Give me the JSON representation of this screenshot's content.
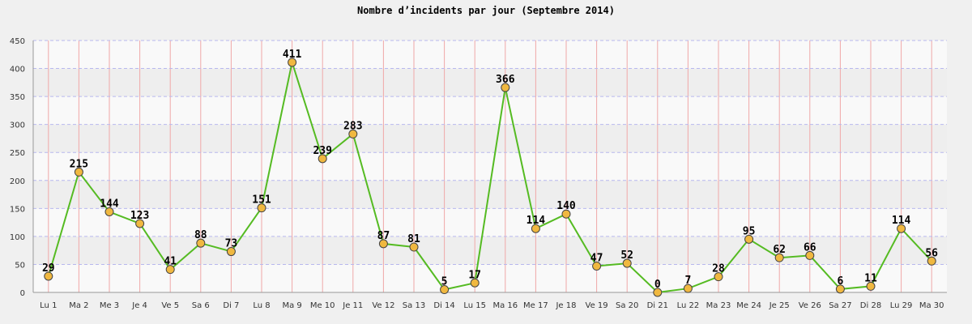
{
  "chart_data": {
    "type": "line",
    "title": "Nombre d’incidents par jour (Septembre 2014)",
    "xlabel": "",
    "ylabel": "",
    "ylim": [
      0,
      450
    ],
    "yticks": [
      0,
      50,
      100,
      150,
      200,
      250,
      300,
      350,
      400,
      450
    ],
    "grid": true,
    "categories": [
      "Lu 1",
      "Ma 2",
      "Me 3",
      "Je 4",
      "Ve 5",
      "Sa 6",
      "Di 7",
      "Lu 8",
      "Ma 9",
      "Me 10",
      "Je 11",
      "Ve 12",
      "Sa 13",
      "Di 14",
      "Lu 15",
      "Ma 16",
      "Me 17",
      "Je 18",
      "Ve 19",
      "Sa 20",
      "Di 21",
      "Lu 22",
      "Ma 23",
      "Me 24",
      "Je 25",
      "Ve 26",
      "Sa 27",
      "Di 28",
      "Lu 29",
      "Ma 30"
    ],
    "series": [
      {
        "values": [
          29,
          215,
          144,
          123,
          41,
          88,
          73,
          151,
          411,
          239,
          283,
          87,
          81,
          5,
          17,
          366,
          114,
          140,
          47,
          52,
          0,
          7,
          28,
          95,
          62,
          66,
          6,
          11,
          114,
          56
        ]
      }
    ],
    "colors": {
      "line": "#55bb22",
      "marker_fill": "#f0b840",
      "marker_stroke": "#444444",
      "plot_band_light": "#f9f9f9",
      "plot_band_dark": "#eeeeee",
      "h_grid": "#b8b8ee",
      "v_grid": "#f0a8a8"
    }
  }
}
